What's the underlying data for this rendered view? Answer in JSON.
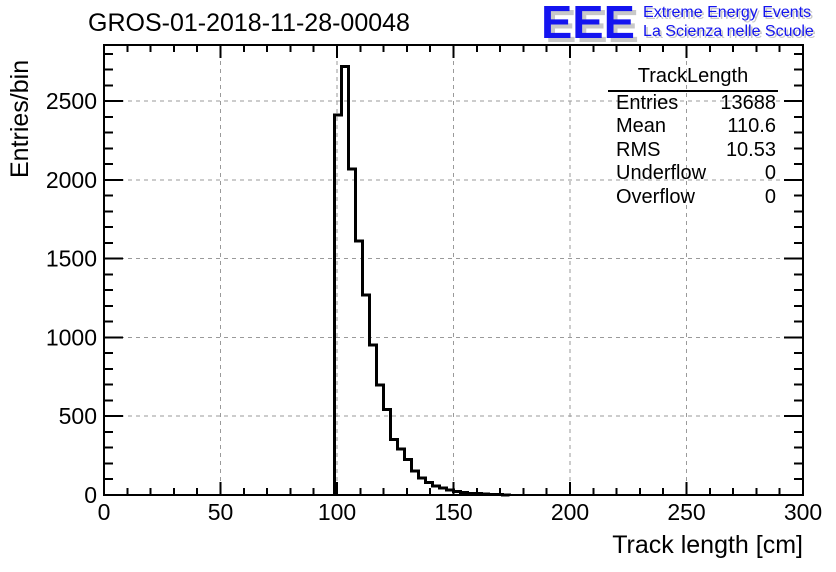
{
  "logo": {
    "acronym": "EEE",
    "line1": "Extreme Energy Events",
    "line2": "La Scienza nelle Scuole",
    "text_color": "#1414f0",
    "shadow_color": "#c8c8c8"
  },
  "stats": {
    "title": "TrackLength",
    "rows": [
      {
        "label": "Entries",
        "value": "13688"
      },
      {
        "label": "Mean",
        "value": "110.6"
      },
      {
        "label": "RMS",
        "value": "10.53"
      },
      {
        "label": "Underflow",
        "value": "0"
      },
      {
        "label": "Overflow",
        "value": "0"
      }
    ]
  },
  "chart_data": {
    "type": "bar",
    "subtype": "step-histogram",
    "title": "GROS-01-2018-11-28-00048",
    "xlabel": "Track length [cm]",
    "ylabel": "Entries/bin",
    "xlim": [
      0,
      300
    ],
    "ylim": [
      0,
      2857
    ],
    "x_major_ticks": [
      0,
      50,
      100,
      150,
      200,
      250,
      300
    ],
    "x_minor_step": 10,
    "y_major_ticks": [
      0,
      500,
      1000,
      1500,
      2000,
      2500
    ],
    "y_minor_step": 100,
    "grid": true,
    "legend_position": "none",
    "bins": {
      "start": 99,
      "width": 3,
      "values": [
        2413,
        2721,
        2069,
        1613,
        1269,
        953,
        698,
        543,
        351,
        292,
        224,
        152,
        108,
        80,
        58,
        43,
        32,
        23,
        16,
        11,
        8,
        5,
        3,
        2,
        1
      ]
    },
    "line_color": "#000000",
    "axis_color": "#000000",
    "grid_color": "#9a9a9a",
    "background": "#ffffff"
  }
}
